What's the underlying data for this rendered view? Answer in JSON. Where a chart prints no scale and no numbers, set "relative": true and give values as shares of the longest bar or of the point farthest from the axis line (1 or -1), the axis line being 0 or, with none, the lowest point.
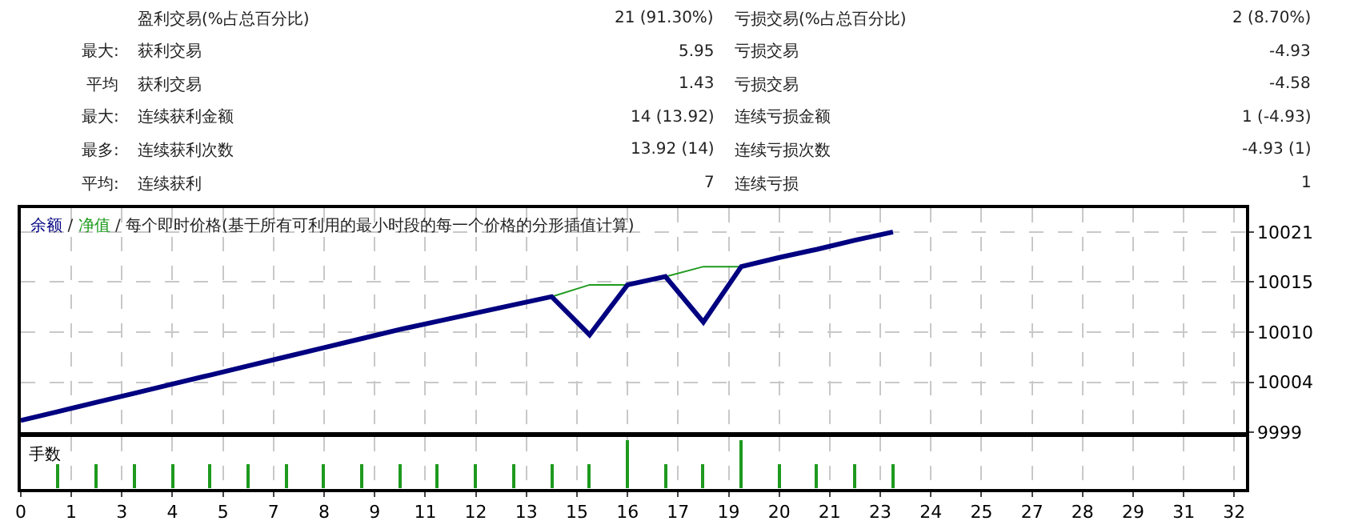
{
  "chart_data": [
    {
      "type": "other",
      "cell_labels": [
        [
          null,
          "盈利交易(%占总百分比)",
          "21 (91.30%)",
          "亏损交易(%占总百分比)",
          "2 (8.70%)"
        ],
        [
          "最大:",
          "获利交易",
          "5.95",
          "亏损交易",
          "-4.93"
        ],
        [
          "平均",
          "获利交易",
          "1.43",
          "亏损交易",
          "-4.58"
        ],
        [
          "最大:",
          "连续获利金额",
          "14 (13.92)",
          "连续亏损金额",
          "1 (-4.93)"
        ],
        [
          "最多:",
          "连续获利次数",
          "13.92 (14)",
          "连续亏损次数",
          "-4.93 (1)"
        ],
        [
          "平均:",
          "连续获利",
          "7",
          "连续亏损",
          "1"
        ]
      ]
    },
    {
      "type": "line",
      "x": [
        0,
        1,
        2,
        3,
        4,
        5,
        6,
        7,
        8,
        9,
        10,
        11,
        12,
        13,
        14,
        15,
        16,
        17,
        18,
        19,
        20,
        21,
        22,
        23
      ],
      "series": [
        {
          "name": "余额",
          "color": "#000080",
          "values": [
            10000.3,
            10001.3,
            10002.3,
            10003.3,
            10004.3,
            10005.3,
            10006.3,
            10007.3,
            10008.3,
            10009.3,
            10010.3,
            10011.2,
            10012.1,
            10013.0,
            10013.9,
            10009.7,
            10015.2,
            10016.1,
            10011.1,
            10017.2,
            10018.2,
            10019.1,
            10020.1,
            10021.0
          ]
        },
        {
          "name": "净值",
          "color": "#1e9a1e",
          "values": [
            null,
            null,
            null,
            null,
            null,
            null,
            null,
            null,
            null,
            null,
            null,
            null,
            null,
            null,
            10013.9,
            10015.2,
            10015.2,
            10016.1,
            10017.2,
            10017.2,
            null,
            null,
            null,
            null
          ]
        }
      ],
      "annotations": [
        "/",
        "/ 每个即时价格(基于所有可利用的最小时段的每一个价格的分形插值计算)"
      ],
      "xlim": [
        0,
        32.3
      ],
      "xticks": [
        {
          "value": 0,
          "label": null
        },
        {
          "value": 1.333,
          "label": null
        },
        {
          "value": 2.667,
          "label": null
        },
        {
          "value": 4,
          "label": null
        },
        {
          "value": 5.333,
          "label": null
        },
        {
          "value": 6.667,
          "label": null
        },
        {
          "value": 8,
          "label": null
        },
        {
          "value": 9.333,
          "label": null
        },
        {
          "value": 10.667,
          "label": null
        },
        {
          "value": 12,
          "label": null
        },
        {
          "value": 13.333,
          "label": null
        },
        {
          "value": 14.667,
          "label": null
        },
        {
          "value": 16,
          "label": null
        },
        {
          "value": 17.333,
          "label": null
        },
        {
          "value": 18.667,
          "label": null
        },
        {
          "value": 20,
          "label": null
        },
        {
          "value": 21.333,
          "label": null
        },
        {
          "value": 22.667,
          "label": null
        },
        {
          "value": 24,
          "label": null
        },
        {
          "value": 25.333,
          "label": null
        },
        {
          "value": 26.667,
          "label": null
        },
        {
          "value": 28,
          "label": null
        },
        {
          "value": 29.333,
          "label": null
        },
        {
          "value": 30.667,
          "label": null
        },
        {
          "value": 32,
          "label": null
        }
      ],
      "ylim": [
        9999,
        10023.6
      ],
      "yticks": [
        9999,
        {
          "value": 10004.5,
          "label": "10004"
        },
        10010,
        {
          "value": 10015.5,
          "label": "10015"
        },
        10021
      ],
      "grid": true,
      "legend": "top left",
      "marker": "none",
      "tick_labels": "y"
    },
    {
      "type": "bar",
      "ylabel": "手数",
      "relative": true,
      "color": "#1e9a1e",
      "x": [
        1,
        2,
        3,
        4,
        5,
        6,
        7,
        8,
        9,
        10,
        11,
        12,
        13,
        14,
        15,
        16,
        17,
        18,
        19,
        20,
        21,
        22,
        23
      ],
      "values": [
        0.5,
        0.5,
        0.5,
        0.5,
        0.5,
        0.5,
        0.5,
        0.5,
        0.5,
        0.5,
        0.5,
        0.5,
        0.5,
        0.5,
        0.5,
        1,
        0.5,
        0.5,
        1,
        0.5,
        0.5,
        0.5,
        0.5
      ],
      "xlim": [
        0,
        32.3
      ],
      "xticks": [
        {
          "value": 0,
          "label": "0"
        },
        {
          "value": 1.333,
          "label": "1"
        },
        {
          "value": 2.667,
          "label": "3"
        },
        {
          "value": 4,
          "label": "4"
        },
        {
          "value": 5.333,
          "label": "5"
        },
        {
          "value": 6.667,
          "label": "7"
        },
        {
          "value": 8,
          "label": "8"
        },
        {
          "value": 9.333,
          "label": "9"
        },
        {
          "value": 10.667,
          "label": "11"
        },
        {
          "value": 12,
          "label": "12"
        },
        {
          "value": 13.333,
          "label": "13"
        },
        {
          "value": 14.667,
          "label": "15"
        },
        {
          "value": 16,
          "label": "16"
        },
        {
          "value": 17.333,
          "label": "17"
        },
        {
          "value": 18.667,
          "label": "19"
        },
        {
          "value": 20,
          "label": "20"
        },
        {
          "value": 21.333,
          "label": "21"
        },
        {
          "value": 22.667,
          "label": "23"
        },
        {
          "value": 24,
          "label": "24"
        },
        {
          "value": 25.333,
          "label": "25"
        },
        {
          "value": 26.667,
          "label": "27"
        },
        {
          "value": 28,
          "label": "28"
        },
        {
          "value": 29.333,
          "label": "29"
        },
        {
          "value": 30.667,
          "label": "31"
        },
        {
          "value": 32,
          "label": "32"
        }
      ],
      "grid": "x",
      "tick_labels": "x"
    }
  ]
}
